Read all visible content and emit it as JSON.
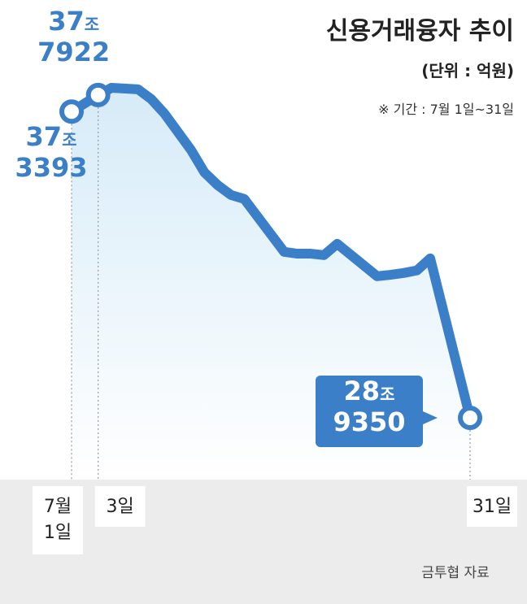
{
  "chart_data": {
    "type": "line",
    "title": "신용거래융자 추이",
    "subtitle": "(단위 : 억원)",
    "annotation": "※ 기간 : 7월 1일~31일",
    "source": "금투협 자료",
    "x": [
      1,
      3,
      4,
      6,
      7,
      8,
      10,
      11,
      12,
      13,
      14,
      17,
      18,
      19,
      20,
      21,
      24,
      25,
      26,
      27,
      28,
      31
    ],
    "xlim": [
      1,
      31
    ],
    "xticks": [
      {
        "value": 1,
        "label": "7월 1일"
      },
      {
        "value": 3,
        "label": "3일"
      },
      {
        "value": 31,
        "label": "31일"
      }
    ],
    "ylim": [
      272400,
      404000
    ],
    "series": [
      {
        "name": "신용거래융자",
        "color": "#3a7fc8",
        "values": [
          373393,
          377922,
          379900,
          379500,
          376800,
          372800,
          362800,
          356700,
          353200,
          350500,
          349400,
          334900,
          334400,
          334400,
          334000,
          337100,
          328200,
          328600,
          329100,
          329800,
          333100,
          289350
        ],
        "value_labels": [
          "37조 3393",
          "37조 7922",
          null,
          null,
          null,
          null,
          null,
          null,
          null,
          null,
          null,
          null,
          null,
          null,
          null,
          null,
          null,
          null,
          null,
          null,
          null,
          "28조 9350"
        ]
      }
    ]
  }
}
